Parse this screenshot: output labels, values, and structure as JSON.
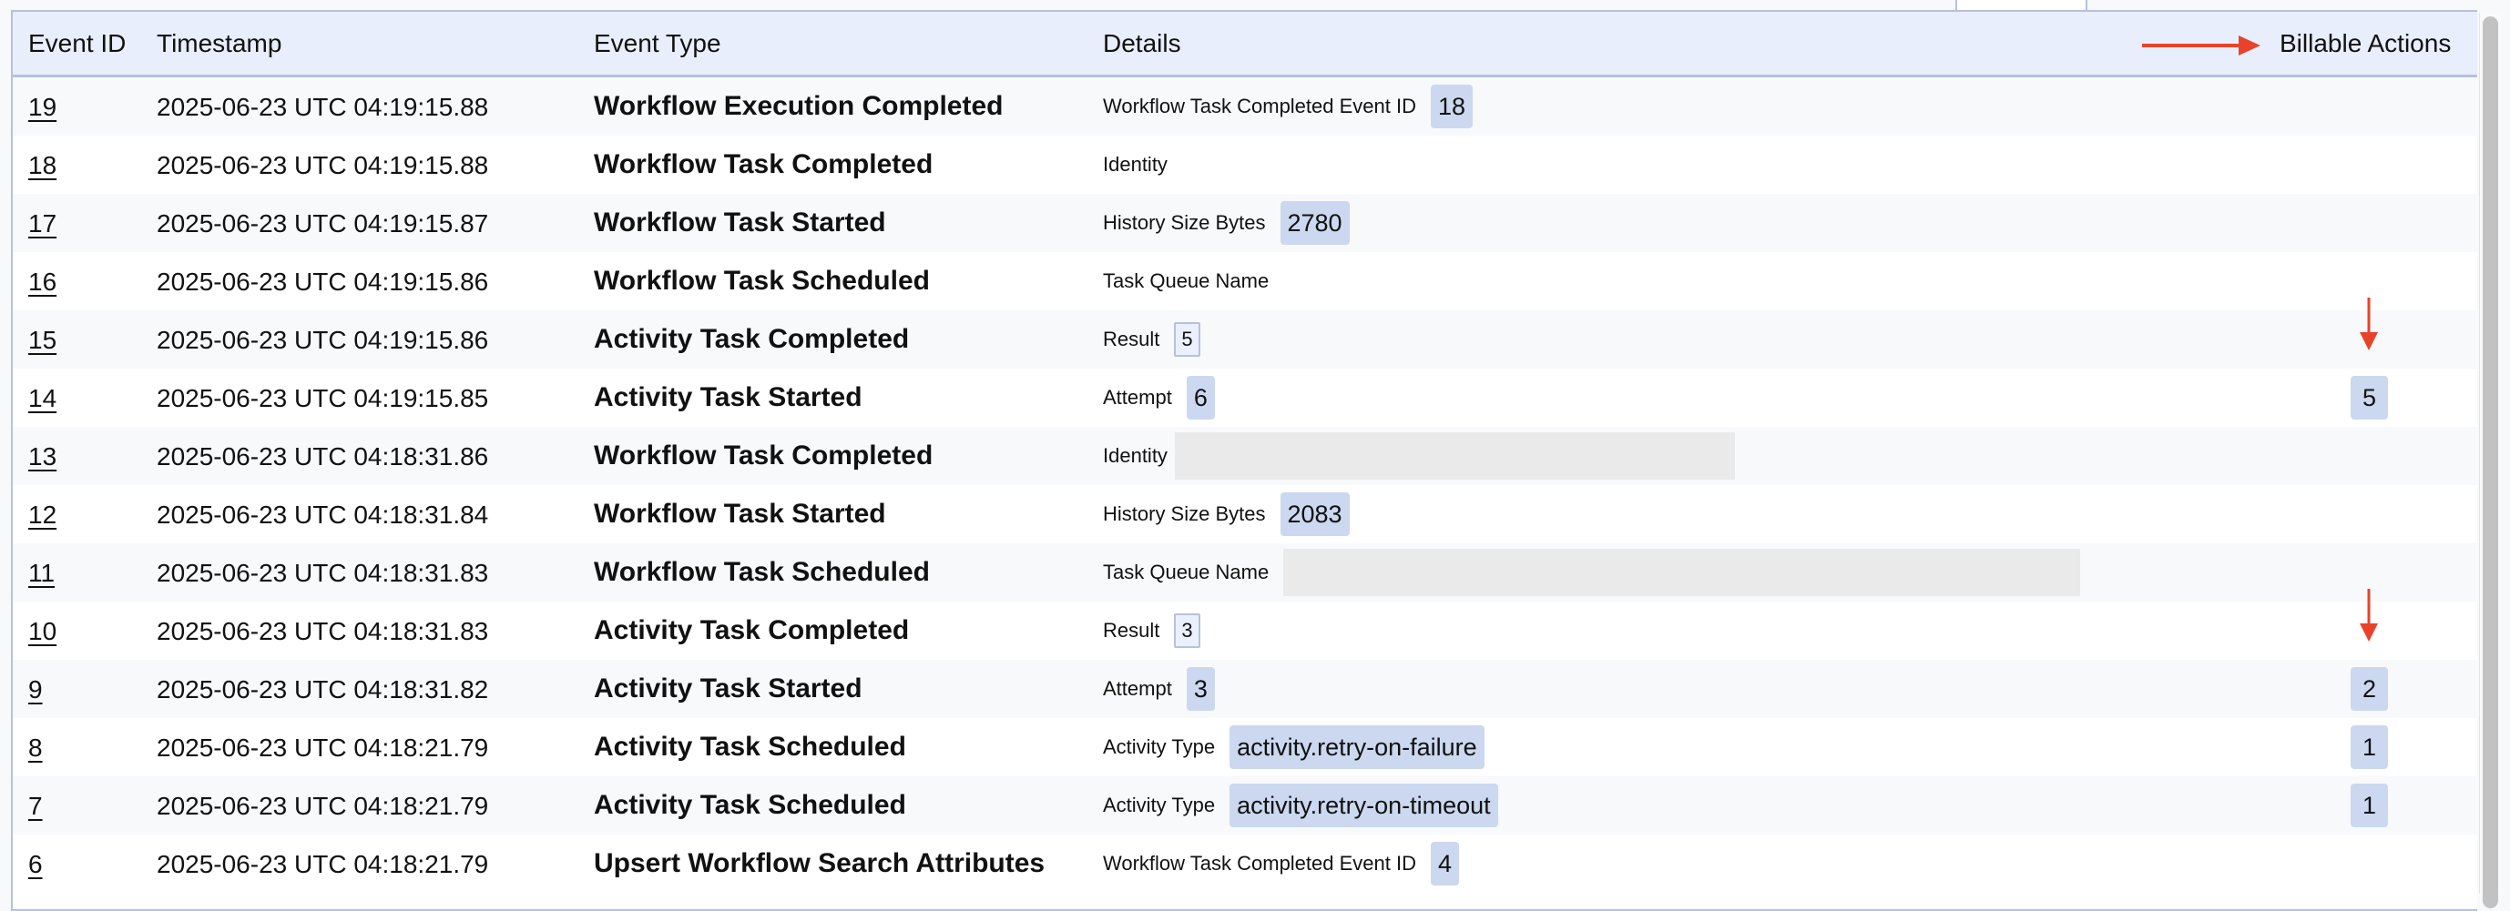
{
  "columns": {
    "event_id": "Event ID",
    "timestamp": "Timestamp",
    "event_type": "Event Type",
    "details": "Details",
    "billable": "Billable Actions"
  },
  "accent_color": "#e8432a",
  "rows": [
    {
      "id": "19",
      "ts": "2025-06-23 UTC 04:19:15.88",
      "type": "Workflow Execution Completed",
      "label": "Workflow Task Completed Event ID",
      "value": "18",
      "style": "badge"
    },
    {
      "id": "18",
      "ts": "2025-06-23 UTC 04:19:15.88",
      "type": "Workflow Task Completed",
      "label": "Identity",
      "value": null,
      "style": "none"
    },
    {
      "id": "17",
      "ts": "2025-06-23 UTC 04:19:15.87",
      "type": "Workflow Task Started",
      "label": "History Size Bytes",
      "value": "2780",
      "style": "badge"
    },
    {
      "id": "16",
      "ts": "2025-06-23 UTC 04:19:15.86",
      "type": "Workflow Task Scheduled",
      "label": "Task Queue Name",
      "value": null,
      "style": "none"
    },
    {
      "id": "15",
      "ts": "2025-06-23 UTC 04:19:15.86",
      "type": "Activity Task Completed",
      "label": "Result",
      "value": "5",
      "style": "outline",
      "arrow": true
    },
    {
      "id": "14",
      "ts": "2025-06-23 UTC 04:19:15.85",
      "type": "Activity Task Started",
      "label": "Attempt",
      "value": "6",
      "style": "badge",
      "billable": "5"
    },
    {
      "id": "13",
      "ts": "2025-06-23 UTC 04:18:31.86",
      "type": "Workflow Task Completed",
      "label": "Identity",
      "value": null,
      "style": "redacted-short"
    },
    {
      "id": "12",
      "ts": "2025-06-23 UTC 04:18:31.84",
      "type": "Workflow Task Started",
      "label": "History Size Bytes",
      "value": "2083",
      "style": "badge"
    },
    {
      "id": "11",
      "ts": "2025-06-23 UTC 04:18:31.83",
      "type": "Workflow Task Scheduled",
      "label": "Task Queue Name",
      "value": null,
      "style": "redacted-long"
    },
    {
      "id": "10",
      "ts": "2025-06-23 UTC 04:18:31.83",
      "type": "Activity Task Completed",
      "label": "Result",
      "value": "3",
      "style": "outline",
      "arrow": true
    },
    {
      "id": "9",
      "ts": "2025-06-23 UTC 04:18:31.82",
      "type": "Activity Task Started",
      "label": "Attempt",
      "value": "3",
      "style": "badge",
      "billable": "2"
    },
    {
      "id": "8",
      "ts": "2025-06-23 UTC 04:18:21.79",
      "type": "Activity Task Scheduled",
      "label": "Activity Type",
      "value": "activity.retry-on-failure",
      "style": "badge",
      "billable": "1"
    },
    {
      "id": "7",
      "ts": "2025-06-23 UTC 04:18:21.79",
      "type": "Activity Task Scheduled",
      "label": "Activity Type",
      "value": "activity.retry-on-timeout",
      "style": "badge",
      "billable": "1"
    },
    {
      "id": "6",
      "ts": "2025-06-23 UTC 04:18:21.79",
      "type": "Upsert Workflow Search Attributes",
      "label": "Workflow Task Completed Event ID",
      "value": "4",
      "style": "badge"
    }
  ]
}
